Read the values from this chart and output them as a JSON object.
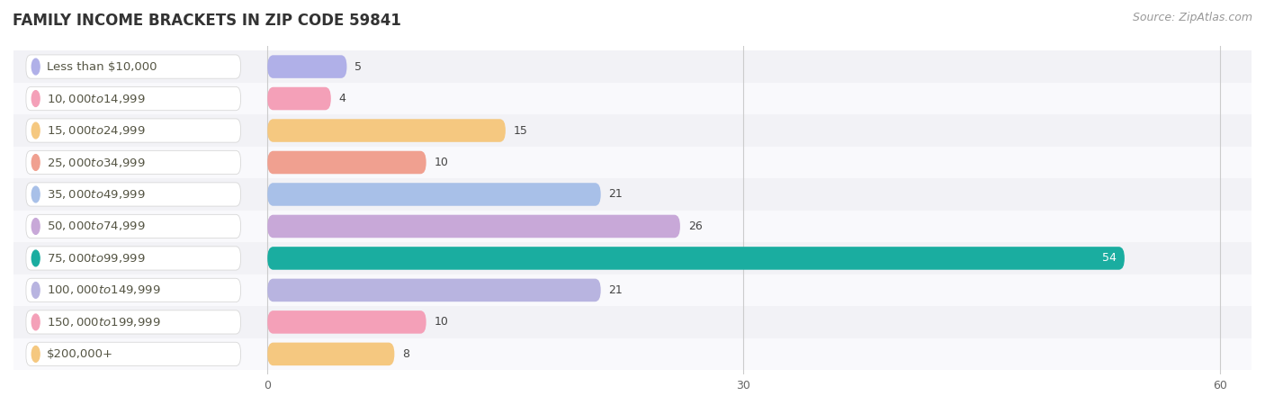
{
  "title": "FAMILY INCOME BRACKETS IN ZIP CODE 59841",
  "source": "Source: ZipAtlas.com",
  "categories": [
    "Less than $10,000",
    "$10,000 to $14,999",
    "$15,000 to $24,999",
    "$25,000 to $34,999",
    "$35,000 to $49,999",
    "$50,000 to $74,999",
    "$75,000 to $99,999",
    "$100,000 to $149,999",
    "$150,000 to $199,999",
    "$200,000+"
  ],
  "values": [
    5,
    4,
    15,
    10,
    21,
    26,
    54,
    21,
    10,
    8
  ],
  "bar_colors": [
    "#b0b0e8",
    "#f4a0b8",
    "#f5c880",
    "#f0a090",
    "#a8c0e8",
    "#c8a8d8",
    "#1aada0",
    "#b8b4e0",
    "#f4a0b8",
    "#f5c880"
  ],
  "xlim": [
    0,
    60
  ],
  "xticks": [
    0,
    30,
    60
  ],
  "figsize": [
    14.06,
    4.5
  ],
  "dpi": 100,
  "bg_color": "#ffffff",
  "row_colors": [
    "#f0f0f4",
    "#f8f8fc"
  ],
  "title_fontsize": 12,
  "source_fontsize": 9,
  "label_fontsize": 9.5,
  "value_fontsize": 9
}
